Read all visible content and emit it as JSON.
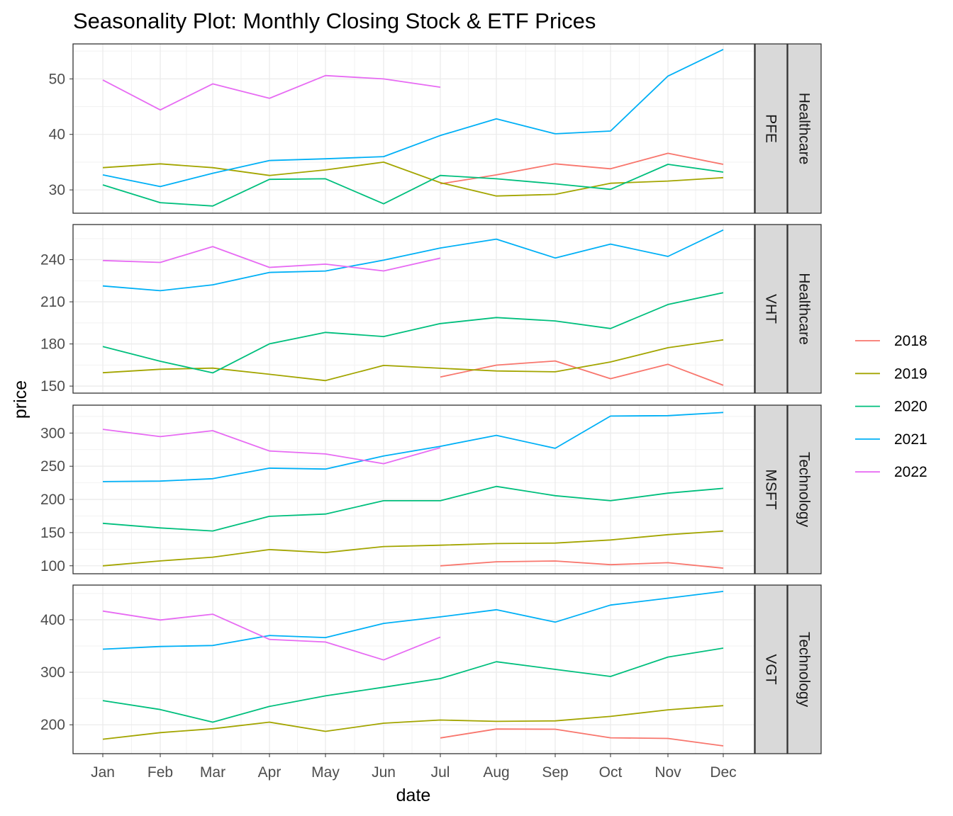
{
  "chart_data": {
    "type": "line",
    "title": "Seasonality Plot: Monthly Closing Stock & ETF Prices",
    "xlabel": "date",
    "ylabel": "price",
    "x_categories": [
      "Jan",
      "Feb",
      "Mar",
      "Apr",
      "May",
      "Jun",
      "Jul",
      "Aug",
      "Sep",
      "Oct",
      "Nov",
      "Dec"
    ],
    "legend": {
      "position": "right",
      "entries": [
        "2018",
        "2019",
        "2020",
        "2021",
        "2022"
      ],
      "colors": {
        "2018": "#F8766D",
        "2019": "#A3A500",
        "2020": "#00BF7D",
        "2021": "#00B0F6",
        "2022": "#E76BF3"
      }
    },
    "panels": [
      {
        "symbol": "PFE",
        "sector": "Healthcare",
        "ylim": [
          25.8,
          56.3
        ],
        "y_ticks": [
          30,
          40,
          50
        ],
        "series": [
          {
            "name": "2018",
            "start": 6,
            "values": [
              31.1,
              32.7,
              34.7,
              33.8,
              36.6,
              34.6
            ]
          },
          {
            "name": "2019",
            "start": 0,
            "values": [
              34.0,
              34.7,
              34.0,
              32.6,
              33.6,
              35.0,
              31.3,
              28.9,
              29.2,
              31.2,
              31.6,
              32.2
            ]
          },
          {
            "name": "2020",
            "start": 0,
            "values": [
              30.9,
              27.7,
              27.1,
              31.9,
              32.0,
              27.5,
              32.6,
              32.0,
              31.1,
              30.1,
              34.6,
              33.2
            ]
          },
          {
            "name": "2021",
            "start": 0,
            "values": [
              32.7,
              30.6,
              33.0,
              35.3,
              35.6,
              36.0,
              39.8,
              42.8,
              40.1,
              40.6,
              50.5,
              55.3
            ]
          },
          {
            "name": "2022",
            "start": 0,
            "values": [
              49.8,
              44.4,
              49.1,
              46.5,
              50.6,
              50.0,
              48.5
            ]
          }
        ]
      },
      {
        "symbol": "VHT",
        "sector": "Healthcare",
        "ylim": [
          145,
          265
        ],
        "y_ticks": [
          150,
          180,
          210,
          240
        ],
        "series": [
          {
            "name": "2018",
            "start": 6,
            "values": [
              156.5,
              164.9,
              167.9,
              155.3,
              165.5,
              150.6
            ]
          },
          {
            "name": "2019",
            "start": 0,
            "values": [
              159.5,
              162.0,
              162.8,
              158.4,
              153.9,
              164.7,
              162.7,
              160.8,
              160.2,
              167.2,
              177.3,
              182.9
            ]
          },
          {
            "name": "2020",
            "start": 0,
            "values": [
              178.2,
              167.7,
              159.4,
              180.1,
              188.2,
              185.3,
              194.5,
              198.8,
              196.4,
              191.0,
              208.1,
              216.5
            ]
          },
          {
            "name": "2021",
            "start": 0,
            "values": [
              221.3,
              217.9,
              222.1,
              230.9,
              231.9,
              239.7,
              248.3,
              254.6,
              241.2,
              251.1,
              242.3,
              261.1
            ]
          },
          {
            "name": "2022",
            "start": 0,
            "values": [
              239.4,
              238.0,
              249.3,
              234.5,
              236.8,
              232.0,
              241.1
            ]
          }
        ]
      },
      {
        "symbol": "MSFT",
        "sector": "Technology",
        "ylim": [
          88,
          342
        ],
        "y_ticks": [
          100,
          150,
          200,
          250,
          300
        ],
        "series": [
          {
            "name": "2018",
            "start": 6,
            "values": [
              100.0,
              106.0,
              107.2,
              101.7,
              104.7,
              96.4
            ]
          },
          {
            "name": "2019",
            "start": 0,
            "values": [
              100.0,
              107.3,
              113.0,
              124.4,
              119.9,
              129.0,
              131.0,
              133.5,
              134.2,
              138.9,
              146.9,
              152.4
            ]
          },
          {
            "name": "2020",
            "start": 0,
            "values": [
              164.0,
              157.0,
              152.5,
              174.6,
              178.0,
              198.0,
              198.0,
              219.6,
              205.6,
              198.0,
              209.5,
              216.7
            ]
          },
          {
            "name": "2021",
            "start": 0,
            "values": [
              226.8,
              227.6,
              231.2,
              247.1,
              245.7,
              265.4,
              280.0,
              296.5,
              277.0,
              325.6,
              326.2,
              331.0
            ]
          },
          {
            "name": "2022",
            "start": 0,
            "values": [
              305.6,
              294.6,
              303.6,
              273.0,
              268.5,
              253.9,
              278.0
            ]
          }
        ]
      },
      {
        "symbol": "VGT",
        "sector": "Technology",
        "ylim": [
          145,
          466
        ],
        "y_ticks": [
          200,
          300,
          400
        ],
        "series": [
          {
            "name": "2018",
            "start": 6,
            "values": [
              175.0,
              192.0,
              191.5,
              175.2,
              174.0,
              159.8
            ]
          },
          {
            "name": "2019",
            "start": 0,
            "values": [
              172.5,
              185.0,
              192.5,
              205.0,
              187.5,
              203.0,
              209.0,
              206.5,
              207.5,
              216.0,
              228.5,
              236.5
            ]
          },
          {
            "name": "2020",
            "start": 0,
            "values": [
              246.0,
              229.0,
              205.0,
              235.0,
              255.0,
              271.5,
              288.0,
              320.0,
              305.5,
              292.0,
              329.0,
              346.0
            ]
          },
          {
            "name": "2021",
            "start": 0,
            "values": [
              344.0,
              349.0,
              351.0,
              370.0,
              366.0,
              393.0,
              405.5,
              419.0,
              395.5,
              428.0,
              441.0,
              454.0
            ]
          },
          {
            "name": "2022",
            "start": 0,
            "values": [
              416.5,
              399.5,
              410.5,
              362.5,
              357.5,
              323.5,
              367.0
            ]
          }
        ]
      }
    ]
  }
}
